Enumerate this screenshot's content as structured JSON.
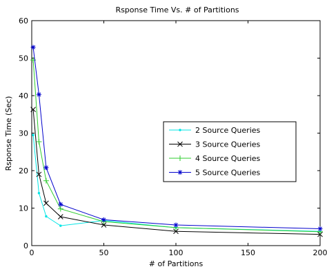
{
  "chart_data": {
    "type": "line",
    "title": "Rsponse Time Vs. # of Partitions",
    "xlabel": "# of Partitions",
    "ylabel": "Rsponse Time (Sec)",
    "xlim": [
      0,
      200
    ],
    "ylim": [
      0,
      60
    ],
    "xticks": [
      0,
      50,
      100,
      150,
      200
    ],
    "yticks": [
      0,
      10,
      20,
      30,
      40,
      50,
      60
    ],
    "grid": false,
    "legend_position": "right",
    "x": [
      1,
      5,
      10,
      20,
      50,
      100,
      200
    ],
    "series": [
      {
        "name": "2 Source Queries",
        "color": "#00e5e5",
        "marker": "dot",
        "values": [
          29.5,
          14,
          7.8,
          5.3,
          6.7,
          4.8,
          3.8
        ]
      },
      {
        "name": "3 Source Queries",
        "color": "#000000",
        "marker": "x",
        "values": [
          36.3,
          19,
          11.3,
          7.7,
          5.5,
          3.8,
          3.0
        ]
      },
      {
        "name": "4 Source Queries",
        "color": "#2ecc2e",
        "marker": "plus",
        "values": [
          49.5,
          27.7,
          17.3,
          9.8,
          6.4,
          4.8,
          3.7
        ]
      },
      {
        "name": "5 Source Queries",
        "color": "#0000cc",
        "marker": "star",
        "values": [
          52.9,
          40.3,
          20.8,
          11,
          6.9,
          5.5,
          4.5
        ]
      }
    ]
  }
}
